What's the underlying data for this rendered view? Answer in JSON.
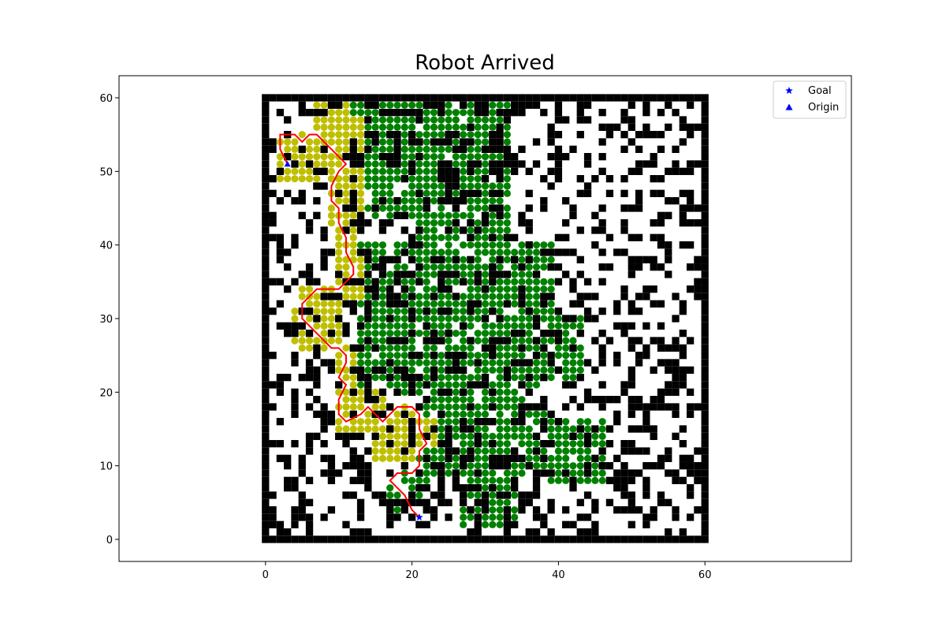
{
  "chart_data": {
    "type": "scatter",
    "title": "Robot Arrived",
    "xlabel": "",
    "ylabel": "",
    "xlim": [
      -20,
      80
    ],
    "ylim": [
      -3,
      63
    ],
    "xticks": [
      0,
      20,
      40,
      60
    ],
    "yticks": [
      0,
      10,
      20,
      30,
      40,
      50,
      60
    ],
    "grid": false,
    "legend": {
      "placement": "top-right",
      "entries": [
        {
          "label": "Goal",
          "marker": "star",
          "color": "#0000ff"
        },
        {
          "label": "Origin",
          "marker": "triangle",
          "color": "#0000ff"
        }
      ]
    },
    "colors": {
      "obstacle": "#000000",
      "visited_from_origin": "#bfbf00",
      "visited_from_goal": "#008000",
      "path": "#ff0000",
      "markers": "#0000ff"
    },
    "grid_extent": {
      "xmin": 0,
      "xmax": 60,
      "ymin": 0,
      "ymax": 60
    },
    "goal": {
      "x": 21,
      "y": 3
    },
    "origin": {
      "x": 3,
      "y": 51
    },
    "path": [
      [
        21,
        3
      ],
      [
        20,
        4
      ],
      [
        19,
        6
      ],
      [
        18,
        7
      ],
      [
        17,
        8
      ],
      [
        18,
        9
      ],
      [
        20,
        9
      ],
      [
        21,
        10
      ],
      [
        21,
        12
      ],
      [
        22,
        13
      ],
      [
        21,
        15
      ],
      [
        21,
        17
      ],
      [
        20,
        18
      ],
      [
        18,
        18
      ],
      [
        17,
        17
      ],
      [
        16,
        16
      ],
      [
        14,
        18
      ],
      [
        13,
        17
      ],
      [
        11,
        16
      ],
      [
        10,
        17
      ],
      [
        10,
        19
      ],
      [
        11,
        21
      ],
      [
        10,
        22
      ],
      [
        11,
        24
      ],
      [
        11,
        25
      ],
      [
        10,
        26
      ],
      [
        9,
        26
      ],
      [
        7,
        28
      ],
      [
        6,
        29
      ],
      [
        5,
        30
      ],
      [
        5,
        32
      ],
      [
        7,
        34
      ],
      [
        10,
        34
      ],
      [
        12,
        36
      ],
      [
        12,
        37
      ],
      [
        11,
        39
      ],
      [
        11,
        41
      ],
      [
        10,
        43
      ],
      [
        10,
        45
      ],
      [
        9,
        46
      ],
      [
        9,
        48
      ],
      [
        10,
        50
      ],
      [
        11,
        51
      ],
      [
        9,
        53
      ],
      [
        7,
        55
      ],
      [
        6,
        55
      ],
      [
        5,
        54
      ],
      [
        4,
        55
      ],
      [
        2,
        55
      ],
      [
        2,
        53
      ],
      [
        3,
        51
      ]
    ],
    "visited_yellow_regions": [
      {
        "x": [
          7,
          11
        ],
        "y": [
          51,
          60
        ]
      },
      {
        "x": [
          10,
          13
        ],
        "y": [
          50,
          57
        ]
      },
      {
        "x": [
          2,
          7
        ],
        "y": [
          49,
          55
        ]
      },
      {
        "x": [
          9,
          13
        ],
        "y": [
          43,
          50
        ]
      },
      {
        "x": [
          10,
          12
        ],
        "y": [
          35,
          43
        ]
      },
      {
        "x": [
          11,
          13
        ],
        "y": [
          33,
          38
        ]
      },
      {
        "x": [
          5,
          10
        ],
        "y": [
          26,
          34
        ]
      },
      {
        "x": [
          4,
          7
        ],
        "y": [
          27,
          31
        ]
      },
      {
        "x": [
          10,
          12
        ],
        "y": [
          20,
          26
        ]
      },
      {
        "x": [
          10,
          16
        ],
        "y": [
          15,
          20
        ]
      },
      {
        "x": [
          15,
          20
        ],
        "y": [
          11,
          18
        ]
      },
      {
        "x": [
          20,
          23
        ],
        "y": [
          13,
          16
        ]
      }
    ],
    "visited_green_regions": [
      {
        "x": [
          12,
          21
        ],
        "y": [
          44,
          60
        ]
      },
      {
        "x": [
          21,
          33
        ],
        "y": [
          40,
          60
        ]
      },
      {
        "x": [
          13,
          20
        ],
        "y": [
          20,
          40
        ]
      },
      {
        "x": [
          20,
          39
        ],
        "y": [
          22,
          40
        ]
      },
      {
        "x": [
          39,
          43
        ],
        "y": [
          22,
          30
        ]
      },
      {
        "x": [
          21,
          38
        ],
        "y": [
          9,
          22
        ]
      },
      {
        "x": [
          37,
          46
        ],
        "y": [
          8,
          16
        ]
      },
      {
        "x": [
          17,
          22
        ],
        "y": [
          4,
          9
        ]
      },
      {
        "x": [
          27,
          34
        ],
        "y": [
          2,
          9
        ]
      }
    ],
    "obstacle_density": 0.34
  }
}
